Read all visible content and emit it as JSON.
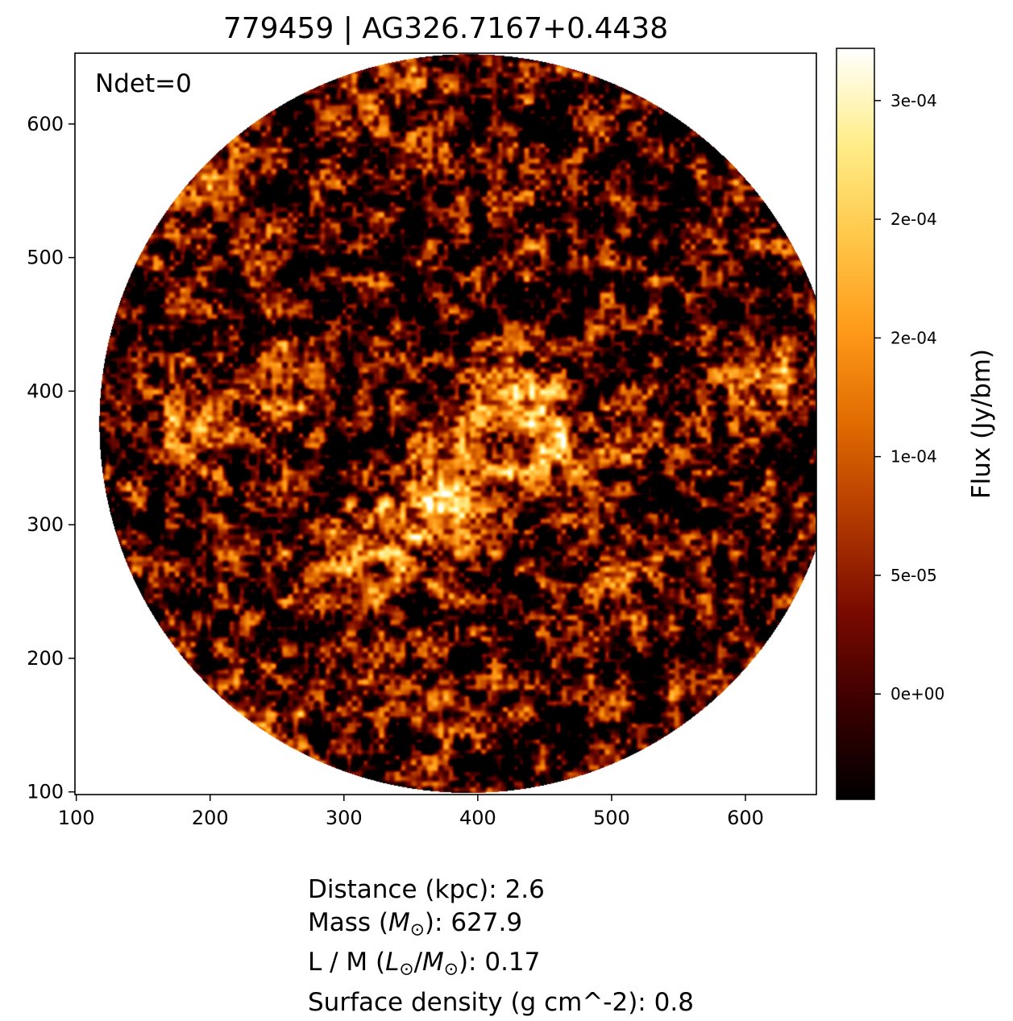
{
  "chart_data": {
    "type": "heatmap",
    "title": "779459 | AG326.7167+0.4438",
    "annotation": "Ndet=0",
    "x_ticks": [
      "100",
      "200",
      "300",
      "400",
      "500",
      "600"
    ],
    "y_ticks": [
      "100",
      "200",
      "300",
      "400",
      "500",
      "600"
    ],
    "xlim": [
      99,
      653
    ],
    "ylim": [
      98,
      653
    ],
    "map_footprint": {
      "shape": "circle",
      "center": [
        393,
        376
      ],
      "radius": 276
    },
    "bright_regions": [
      {
        "x": 380,
        "y": 305,
        "level": 0.9
      },
      {
        "x": 460,
        "y": 360,
        "level": 0.8
      },
      {
        "x": 420,
        "y": 380,
        "level": 0.85
      },
      {
        "x": 350,
        "y": 315,
        "level": 0.7
      },
      {
        "x": 230,
        "y": 150,
        "level": 0.75
      },
      {
        "x": 255,
        "y": 410,
        "level": 0.6
      },
      {
        "x": 190,
        "y": 560,
        "level": 0.55
      },
      {
        "x": 620,
        "y": 410,
        "level": 0.6
      },
      {
        "x": 340,
        "y": 620,
        "level": 0.55
      },
      {
        "x": 190,
        "y": 370,
        "level": 0.55
      },
      {
        "x": 300,
        "y": 270,
        "level": 0.6
      },
      {
        "x": 500,
        "y": 260,
        "level": 0.45
      }
    ],
    "colorbar": {
      "label": "Flux (Jy/bm)",
      "colormap": "afmhot",
      "colors": [
        "#000000",
        "#3a0000",
        "#7a0a00",
        "#b33a00",
        "#e06b00",
        "#ff9a1a",
        "#ffc84a",
        "#ffee8a",
        "#ffffff"
      ],
      "tick_labels": [
        "0e+00",
        "5e-05",
        "1e-04",
        "2e-04",
        "2e-04",
        "3e-04"
      ],
      "tick_values": [
        0,
        5e-05,
        0.0001,
        0.00015,
        0.0002,
        0.00025
      ],
      "vmin": -4.44e-05,
      "vmax": 0.000272
    }
  },
  "info": {
    "distance": "Distance (kpc): 2.6",
    "mass_prefix": "Mass (",
    "mass_sym": "M",
    "mass_suffix": "): 627.9",
    "lm_prefix": "L / M (",
    "lm_sym1": "L",
    "lm_sep": "/",
    "lm_sym2": "M",
    "lm_suffix": "): 0.17",
    "sun_symbol": "⊙",
    "surface_density": "Surface density (g cm^-2): 0.8"
  }
}
